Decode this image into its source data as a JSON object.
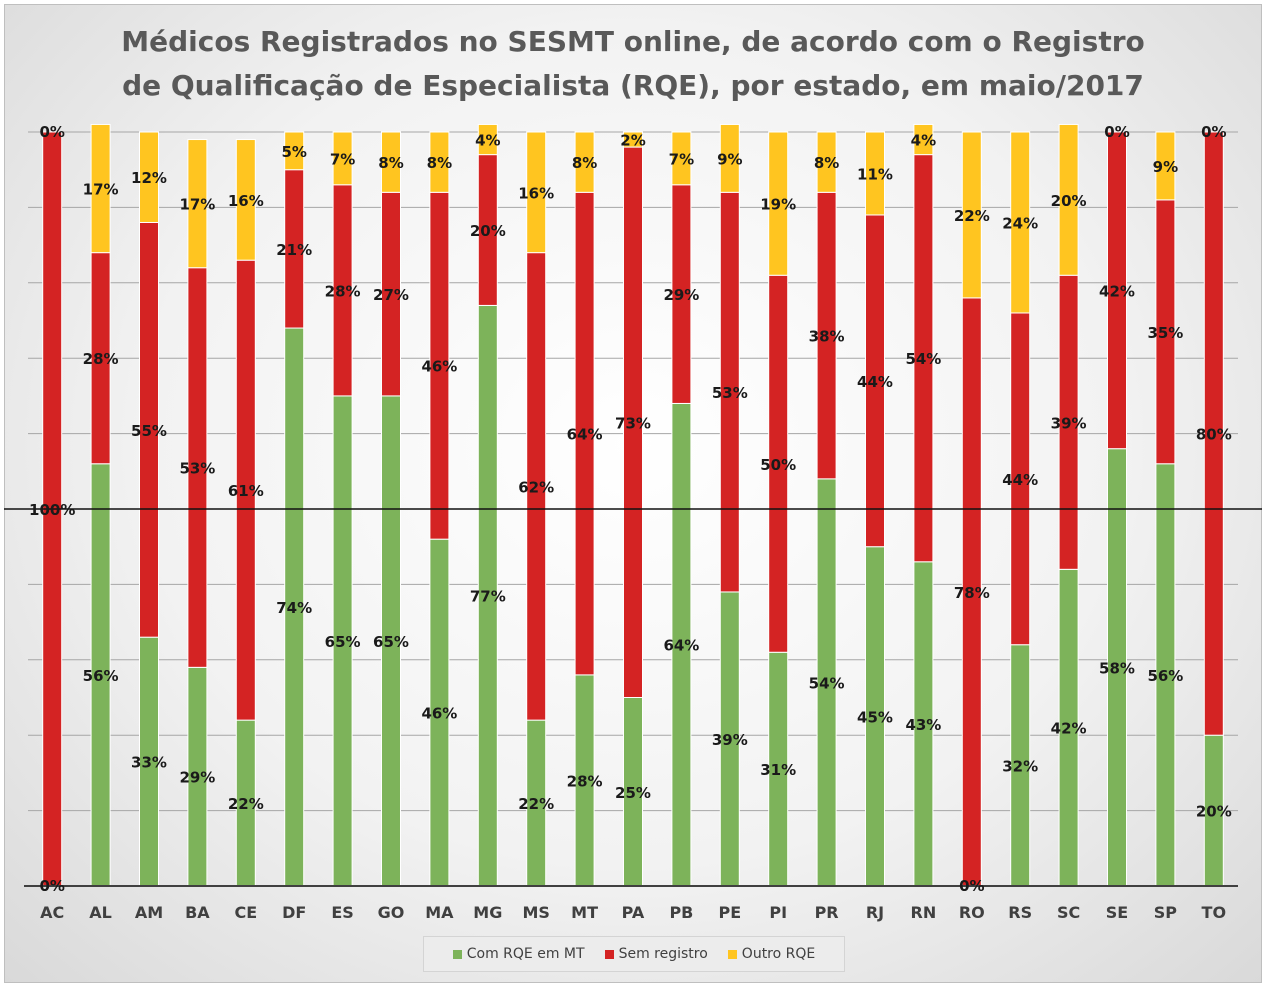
{
  "colors": {
    "green": "#7db35a",
    "red": "#d42323",
    "yellow": "#ffc520",
    "grid": "#a6a6a6",
    "axis": "#404040",
    "marker": "#111111"
  },
  "chart_data": {
    "type": "bar",
    "stacked": true,
    "title_lines": [
      "Médicos Registrados no SESMT online, de acordo com o Registro",
      "de Qualificação de Especialista (RQE), por estado, em maio/2017"
    ],
    "xlabel": "",
    "ylabel": "",
    "ylim": [
      0,
      100
    ],
    "grid": true,
    "legend_position": "bottom",
    "categories": [
      "AC",
      "AL",
      "AM",
      "BA",
      "CE",
      "DF",
      "ES",
      "GO",
      "MA",
      "MG",
      "MS",
      "MT",
      "PA",
      "PB",
      "PE",
      "PI",
      "PR",
      "RJ",
      "RN",
      "RO",
      "RS",
      "SC",
      "SE",
      "SP",
      "TO"
    ],
    "series": [
      {
        "name": "Com RQE em MT",
        "color": "#7db35a",
        "values": [
          0,
          56,
          33,
          29,
          22,
          74,
          65,
          65,
          46,
          77,
          22,
          28,
          25,
          64,
          39,
          31,
          54,
          45,
          43,
          0,
          32,
          42,
          58,
          56,
          20
        ],
        "labels": [
          "0%",
          "56%",
          "33%",
          "29%",
          "22%",
          "74%",
          "65%",
          "65%",
          "46%",
          "77%",
          "22%",
          "28%",
          "25%",
          "64%",
          "39%",
          "31%",
          "54%",
          "45%",
          "43%",
          "0%",
          "32%",
          "42%",
          "58%",
          "56%",
          "20%"
        ]
      },
      {
        "name": "Sem registro",
        "color": "#d42323",
        "values": [
          100,
          28,
          55,
          53,
          61,
          21,
          28,
          27,
          46,
          20,
          62,
          64,
          73,
          29,
          53,
          50,
          38,
          44,
          54,
          78,
          44,
          39,
          42,
          35,
          80
        ],
        "labels": [
          "100%",
          "28%",
          "55%",
          "53%",
          "61%",
          "21%",
          "28%",
          "27%",
          "46%",
          "20%",
          "62%",
          "64%",
          "73%",
          "29%",
          "53%",
          "50%",
          "38%",
          "44%",
          "54%",
          "78%",
          "44%",
          "39%",
          "42%",
          "35%",
          "80%"
        ]
      },
      {
        "name": "Outro RQE",
        "color": "#ffc520",
        "values": [
          0,
          17,
          12,
          17,
          16,
          5,
          7,
          8,
          8,
          4,
          16,
          8,
          2,
          7,
          9,
          19,
          8,
          11,
          4,
          22,
          24,
          20,
          0,
          9,
          0
        ],
        "labels": [
          "0%",
          "17%",
          "12%",
          "17%",
          "16%",
          "5%",
          "7%",
          "8%",
          "8%",
          "4%",
          "16%",
          "8%",
          "2%",
          "7%",
          "9%",
          "19%",
          "8%",
          "11%",
          "4%",
          "22%",
          "24%",
          "20%",
          "0%",
          "9%",
          "0%"
        ]
      }
    ],
    "reference_line": {
      "value": 50
    }
  }
}
